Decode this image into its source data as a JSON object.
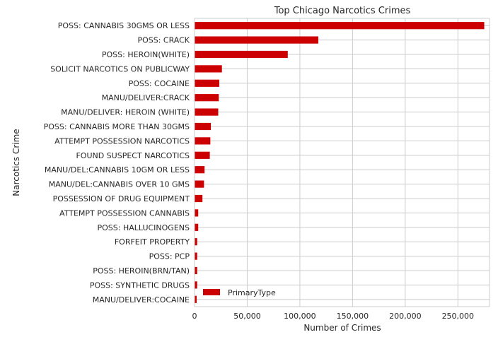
{
  "chart_data": {
    "type": "bar",
    "orientation": "horizontal",
    "title": "Top Chicago Narcotics Crimes",
    "xlabel": "Number of Crimes",
    "ylabel": "Narcotics Crime",
    "xlim": [
      0,
      280000
    ],
    "xticks": [
      0,
      50000,
      100000,
      150000,
      200000,
      250000
    ],
    "xtick_labels": [
      "0",
      "50,000",
      "100,000",
      "150,000",
      "200,000",
      "250,000"
    ],
    "grid": true,
    "legend_position": "lower-left",
    "bar_color": "#cc0000",
    "categories": [
      "POSS: CANNABIS 30GMS OR LESS",
      "POSS: CRACK",
      "POSS: HEROIN(WHITE)",
      "SOLICIT NARCOTICS ON PUBLICWAY",
      "POSS: COCAINE",
      "MANU/DELIVER:CRACK",
      "MANU/DELIVER: HEROIN (WHITE)",
      "POSS: CANNABIS MORE THAN 30GMS",
      "ATTEMPT POSSESSION NARCOTICS",
      "FOUND SUSPECT NARCOTICS",
      "MANU/DEL:CANNABIS 10GM OR LESS",
      "MANU/DEL:CANNABIS OVER 10 GMS",
      "POSSESSION OF DRUG EQUIPMENT",
      "ATTEMPT POSSESSION CANNABIS",
      "POSS: HALLUCINOGENS",
      "FORFEIT PROPERTY",
      "POSS: PCP",
      "POSS: HEROIN(BRN/TAN)",
      "POSS: SYNTHETIC DRUGS",
      "MANU/DELIVER:COCAINE"
    ],
    "series": [
      {
        "name": "PrimaryType",
        "values": [
          275000,
          117500,
          88500,
          26000,
          23500,
          23000,
          22500,
          15500,
          15000,
          14500,
          9500,
          9000,
          7500,
          3500,
          3500,
          2500,
          2500,
          2500,
          2500,
          2000
        ]
      }
    ]
  }
}
